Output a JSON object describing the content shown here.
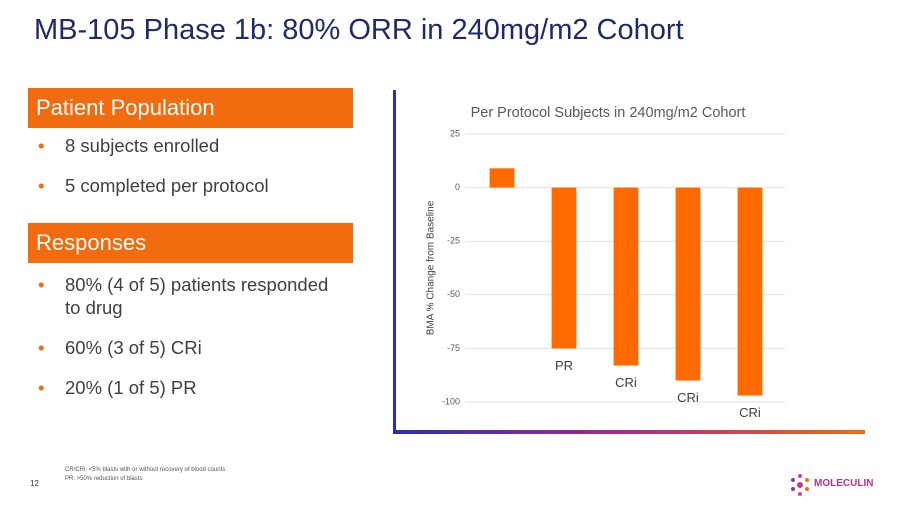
{
  "header": {
    "title": "MB-105 Phase 1b: 80% ORR in 240mg/m2 Cohort"
  },
  "sections": [
    {
      "heading": "Patient Population",
      "bullets": [
        "8 subjects enrolled",
        "5 completed per protocol"
      ]
    },
    {
      "heading": "Responses",
      "bullets": [
        "80% (4 of 5) patients responded to drug",
        "60% (3 of 5) CRi",
        "20% (1 of 5) PR"
      ]
    }
  ],
  "chart_data": {
    "type": "bar",
    "title": "Per Protocol Subjects in 240mg/m2 Cohort",
    "y_label": "BMA % Change from Baseline",
    "categories": [
      null,
      null,
      null,
      null,
      null
    ],
    "values": [
      9,
      -75,
      -83,
      -90,
      -97
    ],
    "bar_labels": [
      null,
      "PR",
      "CRi",
      "CRi",
      "CRi"
    ],
    "color": "#ff6a00",
    "ylim": [
      -100,
      25
    ],
    "yticks": [
      25,
      0,
      -25,
      -50,
      -75,
      -100
    ],
    "grid": true
  },
  "footnotes": [
    "CR/CRi: <5% blasts with or without recovery of blood counts",
    "PR: >50% reduction of blasts"
  ],
  "page_number": "12",
  "logo": "MOLECULIN"
}
